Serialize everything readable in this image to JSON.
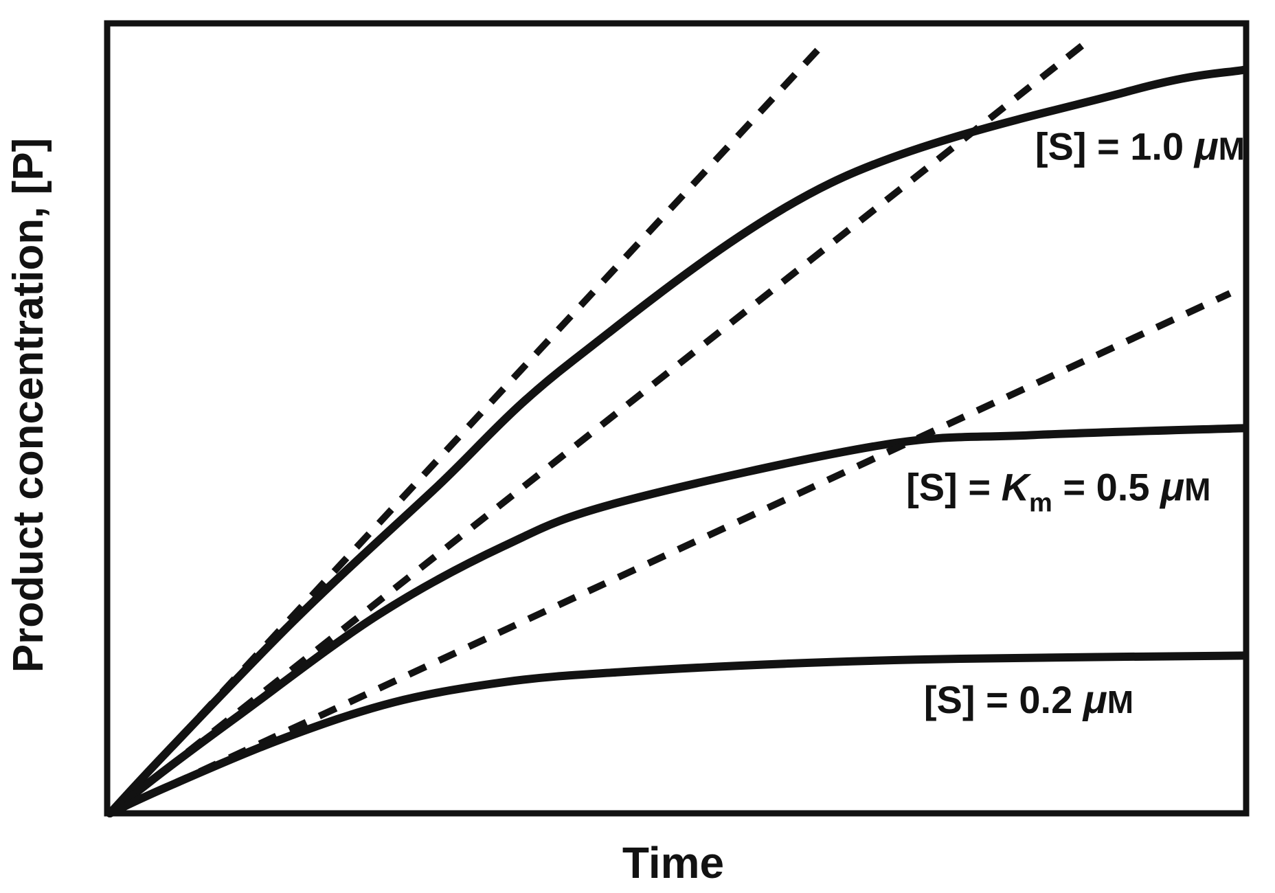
{
  "figure": {
    "background": "#ffffff",
    "ink": "#121212",
    "description": "Enzyme kinetics progress curves: product concentration versus time for three substrate concentrations, with dashed initial-velocity tangent lines from the origin."
  },
  "chart_data": {
    "type": "line",
    "title": "",
    "xlabel": "Time",
    "ylabel": "Product concentration, [P]",
    "axes": {
      "frame": true,
      "ticks": false,
      "grid": false,
      "x_range": [
        0,
        1
      ],
      "y_range": [
        0,
        1
      ]
    },
    "legend_position": "none",
    "series": [
      {
        "name": "progress-curve-S-1.0uM",
        "label": "[S] = 1.0 μM",
        "style": "solid",
        "points": [
          [
            0,
            0
          ],
          [
            0.05,
            0.077
          ],
          [
            0.165,
            0.247
          ],
          [
            0.286,
            0.409
          ],
          [
            0.407,
            0.57
          ],
          [
            0.635,
            0.795
          ],
          [
            0.898,
            0.911
          ],
          [
            1.0,
            0.938
          ]
        ]
      },
      {
        "name": "progress-curve-S-0.5uM",
        "label": "[S] = Km = 0.5 μM",
        "style": "solid",
        "points": [
          [
            0,
            0
          ],
          [
            0.05,
            0.056
          ],
          [
            0.115,
            0.125
          ],
          [
            0.236,
            0.25
          ],
          [
            0.347,
            0.337
          ],
          [
            0.448,
            0.392
          ],
          [
            0.678,
            0.464
          ],
          [
            0.811,
            0.477
          ],
          [
            1.0,
            0.486
          ]
        ]
      },
      {
        "name": "progress-curve-S-0.2uM",
        "label": "[S] = 0.2 μM",
        "style": "solid",
        "points": [
          [
            0,
            0
          ],
          [
            0.05,
            0.033
          ],
          [
            0.15,
            0.093
          ],
          [
            0.25,
            0.14
          ],
          [
            0.35,
            0.166
          ],
          [
            0.448,
            0.178
          ],
          [
            0.6,
            0.189
          ],
          [
            0.75,
            0.195
          ],
          [
            1.0,
            0.199
          ]
        ]
      },
      {
        "name": "initial-velocity-tangent-1.0uM",
        "label": "",
        "style": "dashed",
        "points": [
          [
            0,
            0
          ],
          [
            0.625,
            0.965
          ]
        ]
      },
      {
        "name": "initial-velocity-tangent-0.5uM",
        "label": "",
        "style": "dashed",
        "points": [
          [
            0,
            0
          ],
          [
            0.858,
            0.97
          ]
        ]
      },
      {
        "name": "initial-velocity-tangent-0.2uM",
        "label": "",
        "style": "dashed",
        "points": [
          [
            0,
            0
          ],
          [
            0.987,
            0.656
          ]
        ]
      }
    ],
    "annotations": [
      {
        "name": "label-S-1.0uM",
        "x": 1.0,
        "y": 0.842,
        "anchor": "end",
        "parts": [
          {
            "t": "[S] = 1.0 "
          },
          {
            "t": "μ",
            "style": "mu"
          },
          {
            "t": "M",
            "style": "sc"
          }
        ]
      },
      {
        "name": "label-S-Km-0.5uM",
        "x": 0.97,
        "y": 0.412,
        "anchor": "end",
        "parts": [
          {
            "t": "[S] = "
          },
          {
            "t": "K",
            "style": "ital"
          },
          {
            "t": "m",
            "style": "sub",
            "dy": 16
          },
          {
            "t": " = 0.5 ",
            "dy": -16
          },
          {
            "t": "μ",
            "style": "mu"
          },
          {
            "t": "M",
            "style": "sc"
          }
        ]
      },
      {
        "name": "label-S-0.2uM",
        "x": 0.902,
        "y": 0.144,
        "anchor": "end",
        "parts": [
          {
            "t": "[S] = 0.2 "
          },
          {
            "t": "μ",
            "style": "mu"
          },
          {
            "t": "M",
            "style": "sc"
          }
        ]
      }
    ]
  }
}
